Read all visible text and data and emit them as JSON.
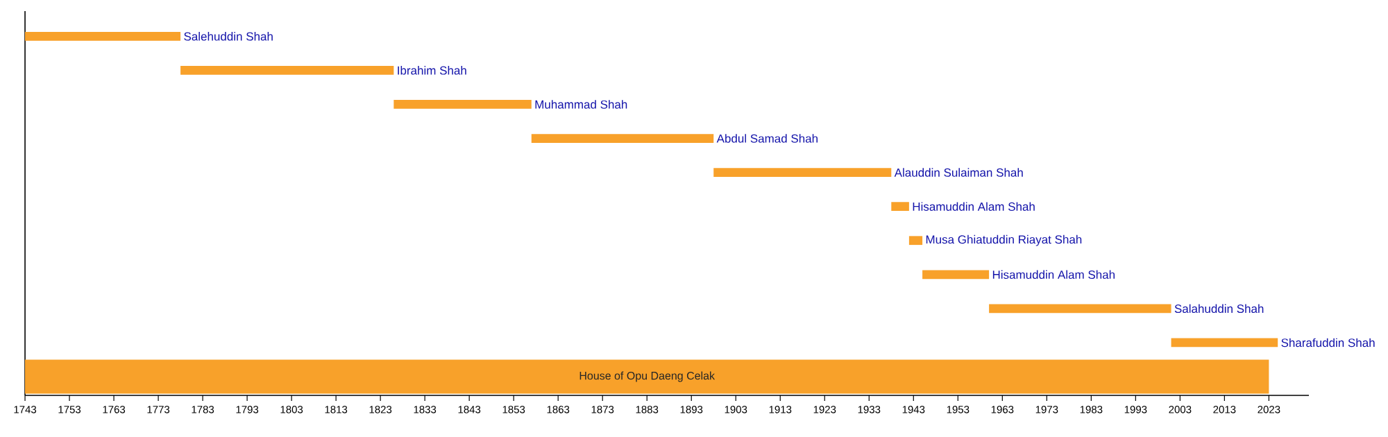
{
  "chart_data": {
    "type": "bar",
    "orientation": "horizontal",
    "categories": [
      "Salehuddin Shah",
      "Ibrahim Shah",
      "Muhammad Shah",
      "Abdul Samad Shah",
      "Alauddin Sulaiman Shah",
      "Hisamuddin Alam Shah",
      "Musa Ghiatuddin Riayat Shah",
      "Hisamuddin Alam Shah",
      "Salahuddin Shah",
      "Sharafuddin Shah",
      "House of Opu Daeng Celak"
    ],
    "series": [
      {
        "color": "#f8a12a",
        "base": [
          1743,
          1778,
          1826,
          1857,
          1898,
          1938,
          1942,
          1945,
          1960,
          2001,
          null
        ],
        "values": [
          35,
          48,
          31,
          41,
          40,
          4,
          3,
          15,
          41,
          24,
          null
        ]
      },
      {
        "color": "#f8a12a",
        "base": [
          null,
          null,
          null,
          null,
          null,
          null,
          null,
          null,
          null,
          null,
          1743
        ],
        "values": [
          null,
          null,
          null,
          null,
          null,
          null,
          null,
          null,
          null,
          null,
          280
        ]
      }
    ],
    "xlim": [
      1743,
      2032
    ],
    "xticks": [
      1743,
      1753,
      1763,
      1773,
      1783,
      1793,
      1803,
      1813,
      1823,
      1833,
      1843,
      1853,
      1863,
      1873,
      1883,
      1893,
      1903,
      1913,
      1923,
      1933,
      1943,
      1953,
      1963,
      1973,
      1983,
      1993,
      2003,
      2013,
      2023
    ],
    "grid": false
  }
}
